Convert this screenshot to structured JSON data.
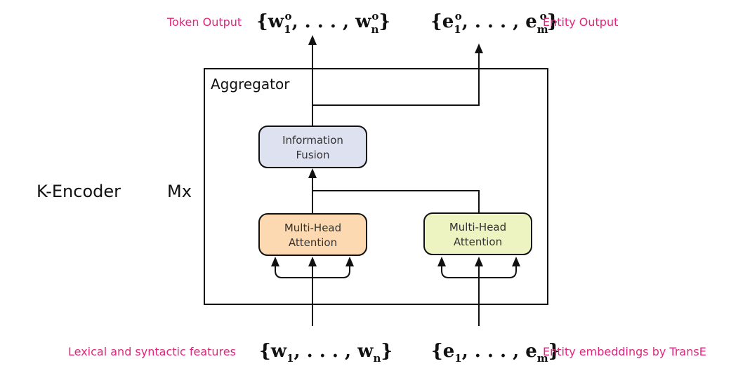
{
  "top": {
    "token_label": "Token Output",
    "token_math": "{w",
    "token_sub1": "1",
    "token_sup1": "o",
    "token_mid": ", . . . , w",
    "token_subn": "n",
    "token_supn": "o",
    "token_close": "}",
    "entity_math": "{e",
    "entity_sub1": "1",
    "entity_sup1": "o",
    "entity_mid": ", . . . , e",
    "entity_subm": "m",
    "entity_supm": "o",
    "entity_close": "}",
    "entity_label": "Entity Output"
  },
  "encoder": {
    "label": "K-Encoder",
    "repeat": "Mx",
    "aggregator_label": "Aggregator"
  },
  "boxes": {
    "fusion_line1": "Information",
    "fusion_line2": "Fusion",
    "mha_left_line1": "Multi-Head",
    "mha_left_line2": "Attention",
    "mha_right_line1": "Multi-Head",
    "mha_right_line2": "Attention"
  },
  "bottom": {
    "lexical_label": "Lexical and syntactic features",
    "w_math": "{w",
    "w_sub1": "1",
    "w_mid": ", . . . , w",
    "w_subn": "n",
    "w_close": "}",
    "e_math": "{e",
    "e_sub1": "1",
    "e_mid": ", . . . , e",
    "e_subm": "m",
    "e_close": "}",
    "entity_label": "Entity embeddings by TransE"
  },
  "colors": {
    "label_pink": "#e0257d",
    "fusion_fill": "#dde1f0",
    "mha_left_fill": "#fcd9b0",
    "mha_right_fill": "#eef3c2"
  }
}
